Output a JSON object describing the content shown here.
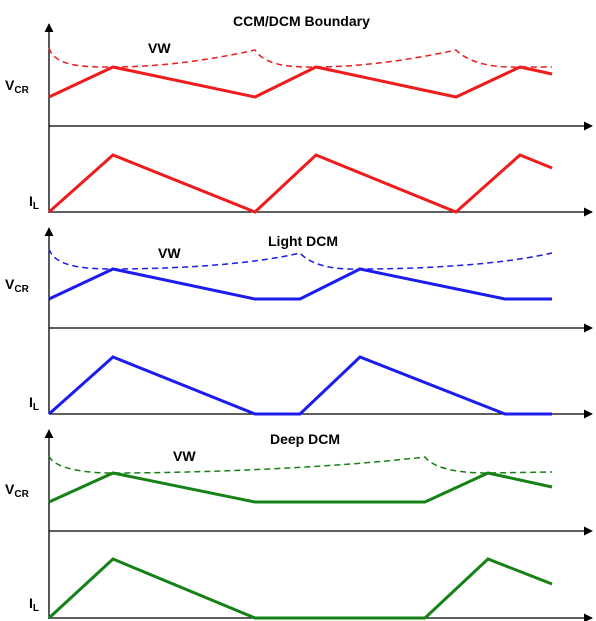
{
  "panels": [
    {
      "title": "CCM/DCM Boundary",
      "color": "#ee1c1c",
      "vw_label": "VW",
      "vcr_main": "V",
      "vcr_sub": "CR",
      "il_main": "I",
      "il_sub": "L"
    },
    {
      "title": "Light DCM",
      "color": "#1c1cee",
      "vw_label": "VW",
      "vcr_main": "V",
      "vcr_sub": "CR",
      "il_main": "I",
      "il_sub": "L"
    },
    {
      "title": "Deep DCM",
      "color": "#168216",
      "vw_label": "VW",
      "vcr_main": "V",
      "vcr_sub": "CR",
      "il_main": "I",
      "il_sub": "L"
    }
  ]
}
